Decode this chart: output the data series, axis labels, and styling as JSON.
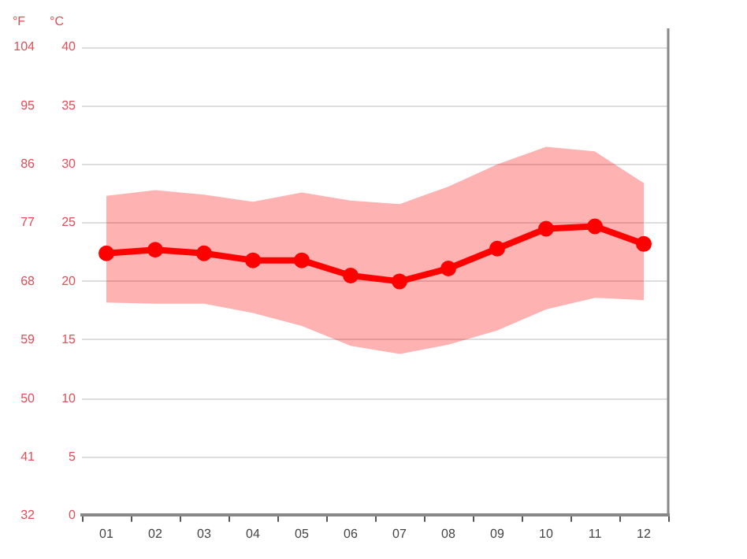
{
  "chart_data": {
    "type": "line",
    "ylabel": "°C",
    "y2label": "°F",
    "categories": [
      "01",
      "02",
      "03",
      "04",
      "05",
      "06",
      "07",
      "08",
      "09",
      "10",
      "11",
      "12"
    ],
    "series": [
      {
        "color": "#ff0000",
        "values": [
          22.4,
          22.7,
          22.4,
          21.8,
          21.8,
          20.5,
          20.0,
          21.1,
          22.8,
          24.5,
          24.7,
          23.2
        ],
        "lower": [
          18.2,
          18.1,
          18.1,
          17.3,
          16.2,
          14.5,
          13.8,
          14.6,
          15.8,
          17.6,
          18.6,
          18.4
        ],
        "upper": [
          27.3,
          27.8,
          27.4,
          26.8,
          27.6,
          26.9,
          26.6,
          28.1,
          30.0,
          31.5,
          31.1,
          28.4
        ]
      }
    ],
    "ylim": [
      0,
      40
    ],
    "yticks": [
      0,
      5,
      10,
      15,
      20,
      25,
      30,
      35,
      40
    ],
    "y2lim": [
      32,
      104
    ],
    "y2ticks": [
      32,
      41,
      50,
      59,
      68,
      77,
      86,
      95,
      104
    ],
    "grid": "y",
    "marker": "circle",
    "legend": false
  }
}
